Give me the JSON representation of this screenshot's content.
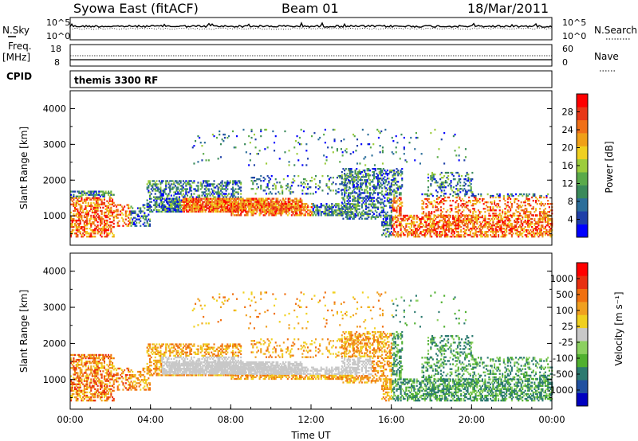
{
  "header": {
    "station": "Syowa East (fitACF)",
    "beam": "Beam 01",
    "date": "18/Mar/2011"
  },
  "top_panels": {
    "nsky_label": "N.Sky",
    "nsky_ticks": [
      "10^5",
      "10^0"
    ],
    "nsearch_label": "N.Search",
    "nsearch_ticks": [
      "10^5",
      "10^0"
    ],
    "freq_label_1": "Freq.",
    "freq_label_2": "[MHz]",
    "freq_ticks": [
      "18",
      "8"
    ],
    "nave_label": "Nave",
    "nave_ticks": [
      "60",
      "0"
    ],
    "cpid_label": "CPID",
    "cpid_value": "themis 3300 RF"
  },
  "chart_data": [
    {
      "type": "heatmap",
      "name": "power",
      "ylabel": "Slant Range [km]",
      "ylim": [
        180,
        4500
      ],
      "yticks": [
        1000,
        2000,
        3000,
        4000
      ],
      "colorbar_label": "Power [dB]",
      "colorbar_ticks": [
        "28",
        "24",
        "20",
        "16",
        "12",
        "8",
        "4"
      ],
      "colors": [
        "#0000ff",
        "#1f3fa8",
        "#2c6e9a",
        "#3a8a5a",
        "#5aaa4a",
        "#9ccc3c",
        "#f0d020",
        "#f0a018",
        "#f07018",
        "#e83818",
        "#ff0000"
      ]
    },
    {
      "type": "heatmap",
      "name": "velocity",
      "ylabel": "Slant Range [km]",
      "ylim": [
        180,
        4500
      ],
      "yticks": [
        1000,
        2000,
        3000,
        4000
      ],
      "xlabel": "Time UT",
      "xticks": [
        "00:00",
        "04:00",
        "08:00",
        "12:00",
        "16:00",
        "20:00",
        "00:00"
      ],
      "colorbar_label": "Velocity [m s⁻¹]",
      "colorbar_ticks": [
        "1000",
        "500",
        "100",
        "25",
        "-25",
        "-100",
        "-500",
        "-1000"
      ],
      "colors": [
        "#0000c0",
        "#2050a0",
        "#2c7a70",
        "#50b030",
        "#8cd060",
        "#c8c8c8",
        "#f0d020",
        "#f0a020",
        "#f07010",
        "#e83010",
        "#ff0000"
      ]
    }
  ]
}
